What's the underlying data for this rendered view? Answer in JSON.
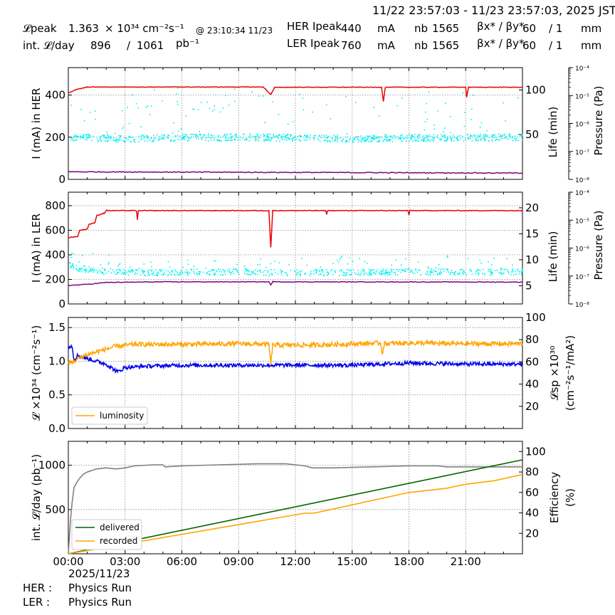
{
  "header": {
    "time_range": "11/22 23:57:03 - 11/23 23:57:03, 2025 JST",
    "lpeak_label": "𝓛peak",
    "lpeak_value": "1.363",
    "lpeak_unit": "× 10³⁴ cm⁻²s⁻¹",
    "lpeak_time": "@ 23:10:34 11/23",
    "intl_label": "int. 𝓛/day",
    "intl_recorded": "896",
    "intl_sep": "/",
    "intl_delivered": "1061",
    "intl_unit": "pb⁻¹",
    "her_label": "HER Ipeak",
    "her_current": "440",
    "ler_label": "LER Ipeak",
    "ler_current": "760",
    "current_unit": "mA",
    "nb_label": "nb",
    "her_nb": "1565",
    "ler_nb": "1565",
    "beta_label": "βx* / βy*",
    "her_beta_x": "60",
    "her_beta_y": "/ 1",
    "ler_beta_x": "60",
    "ler_beta_y": "/ 1",
    "beta_unit": "mm"
  },
  "footer": {
    "date": "2025/11/23",
    "her_label": "HER :",
    "her_status": "Physics Run",
    "ler_label": "LER :",
    "ler_status": "Physics Run"
  },
  "colors": {
    "current": "#ee0000",
    "life": "#00f0f0",
    "pressure": "#800080",
    "luminosity": "#ffa500",
    "specific_luminosity": "#0000ee",
    "delivered": "#006400",
    "recorded": "#ffa500",
    "efficiency": "#808080"
  },
  "chart_data": [
    {
      "type": "line",
      "panel": "HER",
      "ylabel": "I (mA) in HER",
      "ylim": [
        0,
        530
      ],
      "yticks": [
        "0",
        "200",
        "400"
      ],
      "y2label": "Life (min)",
      "y2lim": [
        0,
        125
      ],
      "y2ticks": [
        "50",
        "100"
      ],
      "y3label": "Pressure (Pa)",
      "y3ticks": [
        "10⁻⁸",
        "10⁻⁷",
        "10⁻⁶",
        "10⁻⁵",
        "10⁻⁴"
      ],
      "grid": true,
      "series": [
        {
          "role": "current",
          "x": [
            0,
            0.4,
            1.0,
            10.3,
            10.5,
            10.7,
            10.9,
            12.0,
            16.55,
            16.65,
            16.75,
            21.0,
            21.05,
            21.15,
            24
          ],
          "y": [
            410,
            425,
            438,
            438,
            420,
            402,
            436,
            437,
            437,
            370,
            437,
            437,
            390,
            437,
            437
          ]
        },
        {
          "role": "life",
          "x": [
            0,
            3,
            6,
            9,
            12,
            15,
            18,
            21,
            24
          ],
          "y": [
            48,
            46,
            47,
            48,
            47,
            46,
            47,
            47,
            48
          ]
        },
        {
          "role": "pressure",
          "x": [
            0,
            12,
            24
          ],
          "y": [
            36,
            33,
            30
          ]
        }
      ]
    },
    {
      "type": "line",
      "panel": "LER",
      "ylabel": "I (mA) in LER",
      "ylim": [
        0,
        910
      ],
      "yticks": [
        "0",
        "200",
        "400",
        "600",
        "800"
      ],
      "y2label": "Life (min)",
      "y2lim": [
        1.5,
        23
      ],
      "y2ticks": [
        "5",
        "10",
        "15",
        "20"
      ],
      "y3label": "Pressure (Pa)",
      "y3ticks": [
        "10⁻⁸",
        "10⁻⁷",
        "10⁻⁶",
        "10⁻⁵",
        "10⁻⁴"
      ],
      "grid": true,
      "series": [
        {
          "role": "current",
          "x": [
            0,
            0.5,
            0.6,
            1.0,
            1.1,
            1.4,
            1.5,
            1.9,
            2.0,
            3.6,
            3.65,
            3.7,
            10.6,
            10.7,
            10.8,
            13.6,
            13.65,
            13.7,
            17.95,
            18.0,
            18.05,
            24
          ],
          "y": [
            540,
            550,
            600,
            610,
            650,
            660,
            720,
            740,
            760,
            760,
            685,
            760,
            760,
            460,
            760,
            760,
            730,
            760,
            760,
            725,
            760,
            760
          ]
        },
        {
          "role": "life",
          "x": [
            0,
            0.5,
            1.5,
            3,
            6,
            9,
            12,
            15,
            18,
            21,
            24
          ],
          "y": [
            9,
            8.5,
            8,
            7.6,
            7.7,
            7.8,
            7.6,
            7.7,
            7.8,
            7.7,
            7.8
          ]
        },
        {
          "role": "pressure",
          "x": [
            0,
            1,
            2,
            5,
            10.6,
            10.7,
            10.8,
            24
          ],
          "y": [
            150,
            160,
            175,
            180,
            180,
            155,
            180,
            178
          ]
        }
      ]
    },
    {
      "type": "line",
      "panel": "luminosity",
      "ylabel": "𝓛 ×10³⁴ (cm⁻²s⁻¹)",
      "ylim": [
        0,
        1.65
      ],
      "yticks": [
        "0.0",
        "0.5",
        "1.0",
        "1.5"
      ],
      "y2label": "𝓛sp ×10³⁰ (cm⁻²s⁻¹/mA²)",
      "y2lim": [
        0,
        100
      ],
      "y2ticks": [
        "20",
        "40",
        "60",
        "80",
        "100"
      ],
      "legend": {
        "location": "lower-left",
        "entries": [
          "luminosity"
        ]
      },
      "grid": true,
      "series": [
        {
          "name": "luminosity",
          "role": "luminosity",
          "x": [
            0,
            0.3,
            0.8,
            1.5,
            2.5,
            3.5,
            6,
            9,
            10.6,
            10.7,
            10.8,
            13,
            16.5,
            16.6,
            16.7,
            18,
            21,
            24
          ],
          "y": [
            0.97,
            1.0,
            1.08,
            1.14,
            1.22,
            1.25,
            1.25,
            1.26,
            1.25,
            0.95,
            1.24,
            1.24,
            1.27,
            1.12,
            1.26,
            1.27,
            1.26,
            1.26
          ]
        },
        {
          "role": "specific_luminosity",
          "x": [
            0,
            0.2,
            0.3,
            0.5,
            1,
            2,
            2.6,
            3,
            4,
            6,
            9,
            12,
            15,
            18,
            21,
            24
          ],
          "y": [
            74,
            74,
            62,
            66,
            63,
            58,
            51,
            55,
            56,
            57,
            57,
            57,
            57,
            59,
            58,
            58
          ]
        }
      ]
    },
    {
      "type": "line",
      "panel": "integrated",
      "ylabel": "int. 𝓛/day (pb⁻¹)",
      "ylim": [
        0,
        1270
      ],
      "yticks": [
        "500",
        "1000"
      ],
      "y2label": "Efficiency (%)",
      "y2lim": [
        0,
        110
      ],
      "y2ticks": [
        "20",
        "40",
        "60",
        "80",
        "100"
      ],
      "xticks": [
        "00:00",
        "03:00",
        "06:00",
        "09:00",
        "12:00",
        "15:00",
        "18:00",
        "21:00"
      ],
      "xlim": [
        0,
        24
      ],
      "legend": {
        "location": "lower-left",
        "entries": [
          "delivered",
          "recorded"
        ]
      },
      "grid": true,
      "series": [
        {
          "name": "delivered",
          "role": "delivered",
          "axis": "left",
          "x": [
            0,
            24
          ],
          "y": [
            0,
            1061
          ]
        },
        {
          "name": "recorded",
          "role": "recorded",
          "axis": "left",
          "x": [
            0,
            12.5,
            13,
            18,
            20,
            21,
            22.5,
            24
          ],
          "y": [
            0,
            458,
            460,
            692,
            740,
            785,
            825,
            896
          ]
        },
        {
          "role": "efficiency",
          "axis": "right",
          "x": [
            0,
            0.1,
            0.2,
            0.3,
            0.45,
            0.6,
            0.8,
            1,
            1.5,
            2,
            2.5,
            3,
            3.5,
            4.5,
            5,
            5.1,
            6,
            8,
            10,
            11.5,
            12,
            12.5,
            12.9,
            14,
            16,
            18,
            19.5,
            20,
            21,
            22,
            24
          ],
          "y": [
            0,
            30,
            50,
            65,
            70,
            74,
            78,
            80,
            83,
            84,
            83,
            84,
            86,
            87,
            87,
            85,
            86,
            87,
            88,
            88,
            87,
            86,
            84,
            84,
            85,
            86,
            86,
            85,
            85,
            85,
            85
          ]
        }
      ]
    }
  ]
}
